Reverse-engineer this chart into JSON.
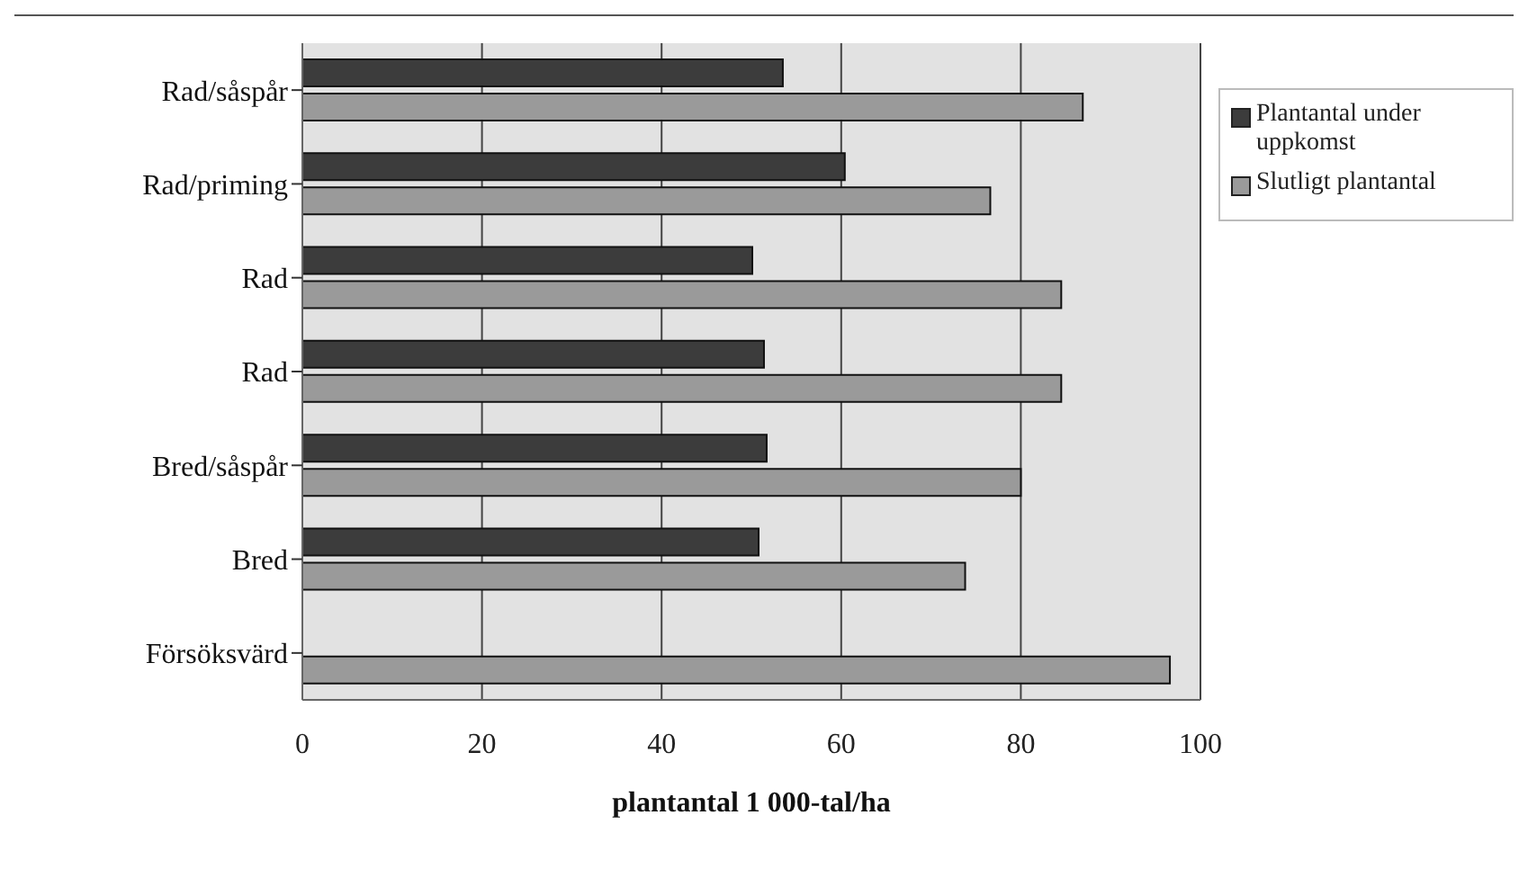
{
  "chart_data": {
    "type": "bar",
    "orientation": "horizontal",
    "xlabel": "plantantal 1 000-tal/ha",
    "categories": [
      "Rad/såspår",
      "Rad/priming",
      "Rad",
      "Rad",
      "Bred/såspår",
      "Bred",
      "Försöksvärd"
    ],
    "series": [
      {
        "name": "Plantantal under uppkomst",
        "color": "#3c3c3c",
        "values": [
          53.5,
          60.4,
          50.1,
          51.4,
          51.7,
          50.8,
          null
        ]
      },
      {
        "name": "Slutligt plantantal",
        "color": "#9a9a9a",
        "values": [
          86.9,
          76.6,
          84.5,
          84.5,
          80,
          73.8,
          96.6
        ]
      }
    ],
    "xlim": [
      0,
      100
    ],
    "xticks": [
      0,
      20,
      40,
      60,
      80,
      100
    ],
    "grid": "x",
    "legend": "right"
  }
}
